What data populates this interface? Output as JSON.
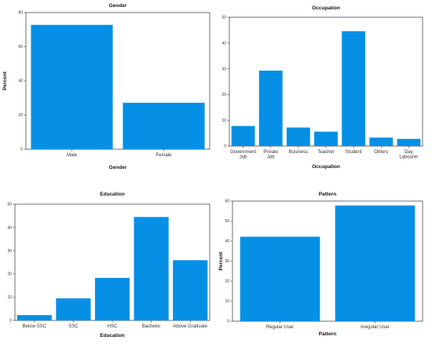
{
  "chart_data": [
    {
      "type": "bar",
      "title": "Gender",
      "xlabel": "Gender",
      "ylabel": "Percent",
      "categories": [
        "Male",
        "Female"
      ],
      "values": [
        72.8,
        27.2
      ],
      "ylim": [
        0,
        80
      ],
      "yticks": [
        0,
        20,
        40,
        60,
        80
      ],
      "color": "#0590e6"
    },
    {
      "type": "bar",
      "title": "Occupation",
      "xlabel": "Occupation",
      "ylabel": "",
      "categories": [
        "Government Job",
        "Private Job",
        "Business",
        "Teacher",
        "Student",
        "Others",
        "Day Labourer"
      ],
      "values": [
        7.8,
        29.3,
        7.2,
        5.6,
        44.6,
        3.3,
        2.8
      ],
      "ylim": [
        0,
        50
      ],
      "yticks": [
        0,
        10,
        20,
        30,
        40,
        50
      ],
      "color": "#0590e6"
    },
    {
      "type": "bar",
      "title": "Education",
      "xlabel": "Education",
      "ylabel": "",
      "categories": [
        "Below SSC",
        "SSC",
        "HSC",
        "Bachelor",
        "Above Graduate"
      ],
      "values": [
        2.3,
        9.5,
        18.3,
        44.5,
        25.9
      ],
      "ylim": [
        0,
        50
      ],
      "yticks": [
        0,
        10,
        20,
        30,
        40,
        50
      ],
      "color": "#0590e6"
    },
    {
      "type": "bar",
      "title": "Pattern",
      "xlabel": "Pattern",
      "ylabel": "Percent",
      "categories": [
        "Regular User",
        "Irregular User"
      ],
      "values": [
        42.2,
        57.8
      ],
      "ylim": [
        0,
        60
      ],
      "yticks": [
        0,
        10,
        20,
        30,
        40,
        50,
        60
      ],
      "color": "#0590e6"
    }
  ]
}
